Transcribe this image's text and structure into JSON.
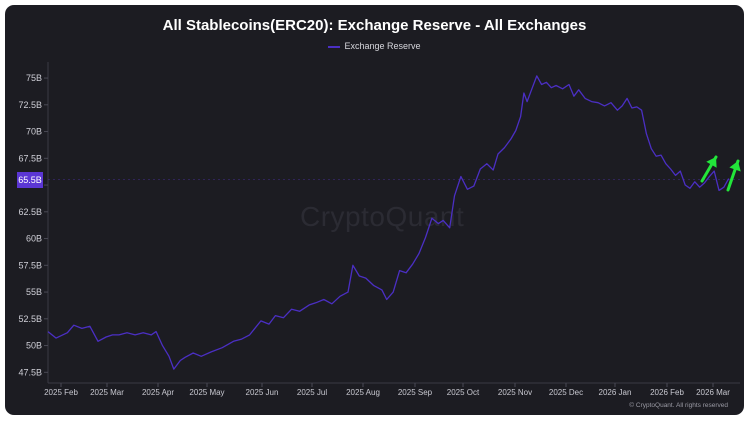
{
  "chart_data": {
    "type": "line",
    "title": "All Stablecoins(ERC20): Exchange Reserve - All Exchanges",
    "xlabel": "",
    "ylabel": "",
    "ylim": [
      46.5,
      76.5
    ],
    "y_ticks": [
      {
        "value": 47.5,
        "label": "47.5B"
      },
      {
        "value": 50,
        "label": "50B"
      },
      {
        "value": 52.5,
        "label": "52.5B"
      },
      {
        "value": 55,
        "label": "55B"
      },
      {
        "value": 57.5,
        "label": "57.5B"
      },
      {
        "value": 60,
        "label": "60B"
      },
      {
        "value": 62.5,
        "label": "62.5B"
      },
      {
        "value": 65,
        "label": "65B"
      },
      {
        "value": 67.5,
        "label": "67.5B"
      },
      {
        "value": 70,
        "label": "70B"
      },
      {
        "value": 72.5,
        "label": "72.5B"
      },
      {
        "value": 75,
        "label": "75B"
      }
    ],
    "x_ticks": [
      "2025 Feb",
      "2025 Mar",
      "2025 Apr",
      "2025 May",
      "2025 Jun",
      "2025 Jul",
      "2025 Aug",
      "2025 Sep",
      "2025 Oct",
      "2025 Nov",
      "2025 Dec",
      "2026 Jan",
      "2026 Feb",
      "2026 Mar"
    ],
    "x_range": [
      "2025-01-20",
      "2026-03-25"
    ],
    "grid": false,
    "legend": "top-center",
    "current_value": {
      "value": 65.5,
      "label": "65.5B"
    },
    "series": [
      {
        "name": "Exchange Reserve",
        "color": "#4b2fc4",
        "points": [
          [
            "2025-01-20",
            51.3
          ],
          [
            "2025-01-25",
            50.7
          ],
          [
            "2025-02-01",
            51.2
          ],
          [
            "2025-02-05",
            51.9
          ],
          [
            "2025-02-10",
            51.6
          ],
          [
            "2025-02-15",
            51.8
          ],
          [
            "2025-02-20",
            50.4
          ],
          [
            "2025-02-25",
            50.8
          ],
          [
            "2025-03-01",
            51.0
          ],
          [
            "2025-03-05",
            51.0
          ],
          [
            "2025-03-10",
            51.2
          ],
          [
            "2025-03-15",
            51.0
          ],
          [
            "2025-03-20",
            51.2
          ],
          [
            "2025-03-25",
            51.0
          ],
          [
            "2025-03-28",
            51.3
          ],
          [
            "2025-04-01",
            50.0
          ],
          [
            "2025-04-05",
            49.0
          ],
          [
            "2025-04-08",
            47.8
          ],
          [
            "2025-04-12",
            48.6
          ],
          [
            "2025-04-15",
            48.9
          ],
          [
            "2025-04-20",
            49.3
          ],
          [
            "2025-04-25",
            49.0
          ],
          [
            "2025-05-01",
            49.4
          ],
          [
            "2025-05-08",
            49.8
          ],
          [
            "2025-05-15",
            50.4
          ],
          [
            "2025-05-20",
            50.6
          ],
          [
            "2025-05-25",
            51.0
          ],
          [
            "2025-06-01",
            52.3
          ],
          [
            "2025-06-06",
            52.0
          ],
          [
            "2025-06-10",
            52.8
          ],
          [
            "2025-06-15",
            52.6
          ],
          [
            "2025-06-20",
            53.4
          ],
          [
            "2025-06-25",
            53.2
          ],
          [
            "2025-07-01",
            53.8
          ],
          [
            "2025-07-05",
            54.0
          ],
          [
            "2025-07-10",
            54.3
          ],
          [
            "2025-07-15",
            53.9
          ],
          [
            "2025-07-20",
            54.6
          ],
          [
            "2025-07-25",
            55.0
          ],
          [
            "2025-07-28",
            57.5
          ],
          [
            "2025-08-01",
            56.5
          ],
          [
            "2025-08-05",
            56.3
          ],
          [
            "2025-08-10",
            55.6
          ],
          [
            "2025-08-15",
            55.2
          ],
          [
            "2025-08-18",
            54.3
          ],
          [
            "2025-08-22",
            55.0
          ],
          [
            "2025-08-26",
            57.0
          ],
          [
            "2025-08-30",
            56.8
          ],
          [
            "2025-09-03",
            57.6
          ],
          [
            "2025-09-07",
            58.6
          ],
          [
            "2025-09-11",
            60.1
          ],
          [
            "2025-09-15",
            61.9
          ],
          [
            "2025-09-19",
            61.4
          ],
          [
            "2025-09-22",
            61.7
          ],
          [
            "2025-09-26",
            61.0
          ],
          [
            "2025-09-29",
            64.0
          ],
          [
            "2025-10-03",
            65.8
          ],
          [
            "2025-10-07",
            64.6
          ],
          [
            "2025-10-11",
            64.9
          ],
          [
            "2025-10-15",
            66.5
          ],
          [
            "2025-10-19",
            67.0
          ],
          [
            "2025-10-23",
            66.4
          ],
          [
            "2025-10-26",
            67.9
          ],
          [
            "2025-10-30",
            68.5
          ],
          [
            "2025-11-03",
            69.3
          ],
          [
            "2025-11-06",
            70.1
          ],
          [
            "2025-11-09",
            71.4
          ],
          [
            "2025-11-11",
            73.6
          ],
          [
            "2025-11-13",
            72.8
          ],
          [
            "2025-11-16",
            74.0
          ],
          [
            "2025-11-19",
            75.2
          ],
          [
            "2025-11-22",
            74.4
          ],
          [
            "2025-11-25",
            74.6
          ],
          [
            "2025-11-28",
            74.1
          ],
          [
            "2025-12-01",
            74.3
          ],
          [
            "2025-12-05",
            74.0
          ],
          [
            "2025-12-09",
            74.4
          ],
          [
            "2025-12-12",
            73.3
          ],
          [
            "2025-12-15",
            73.9
          ],
          [
            "2025-12-19",
            73.1
          ],
          [
            "2025-12-23",
            72.8
          ],
          [
            "2025-12-27",
            72.7
          ],
          [
            "2025-12-31",
            72.4
          ],
          [
            "2026-01-04",
            72.7
          ],
          [
            "2026-01-08",
            72.0
          ],
          [
            "2026-01-11",
            72.4
          ],
          [
            "2026-01-14",
            73.1
          ],
          [
            "2026-01-17",
            72.2
          ],
          [
            "2026-01-20",
            72.3
          ],
          [
            "2026-01-23",
            72.0
          ],
          [
            "2026-01-26",
            69.8
          ],
          [
            "2026-01-29",
            68.4
          ],
          [
            "2026-02-01",
            67.7
          ],
          [
            "2026-02-04",
            67.8
          ],
          [
            "2026-02-07",
            67.0
          ],
          [
            "2026-02-10",
            66.5
          ],
          [
            "2026-02-13",
            65.9
          ],
          [
            "2026-02-16",
            66.3
          ],
          [
            "2026-02-19",
            65.0
          ],
          [
            "2026-02-22",
            64.7
          ],
          [
            "2026-02-25",
            65.3
          ],
          [
            "2026-02-28",
            64.8
          ],
          [
            "2026-03-03",
            65.2
          ],
          [
            "2026-03-06",
            65.8
          ],
          [
            "2026-03-09",
            66.3
          ],
          [
            "2026-03-12",
            64.5
          ],
          [
            "2026-03-15",
            64.8
          ],
          [
            "2026-03-18",
            65.6
          ]
        ]
      }
    ]
  },
  "watermark": "CryptoQuant",
  "copyright": "© CryptoQuant. All rights reserved",
  "annotation_color": "#22e53a"
}
